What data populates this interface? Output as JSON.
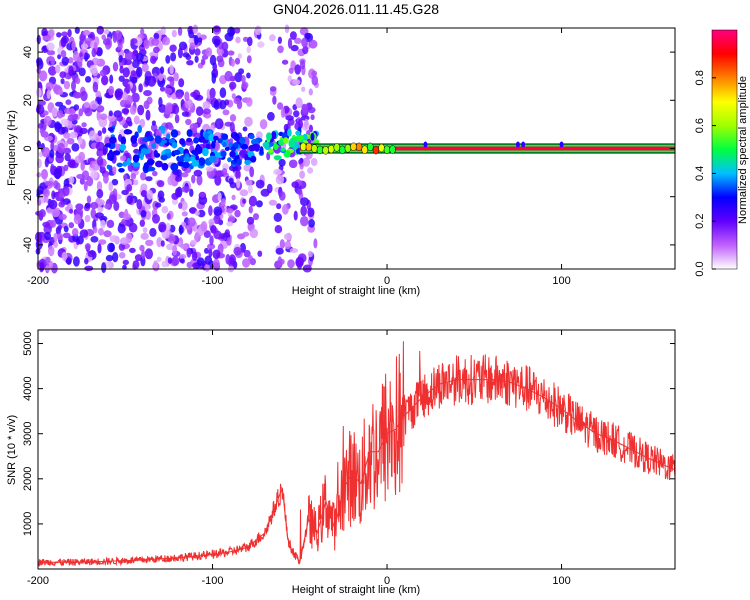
{
  "title": "GN04.2026.011.11.45.G28",
  "chart_data": [
    {
      "type": "heatmap",
      "name": "spectrogram",
      "title": "GN04.2026.011.11.45.G28",
      "xlabel": "Height of straight line (km)",
      "ylabel": "Frequency (Hz)",
      "xlim": [
        -200,
        165
      ],
      "ylim": [
        -50,
        50
      ],
      "xticks": [
        -200,
        -100,
        0,
        100
      ],
      "xtick_labels": [
        "-200",
        "-100",
        "0",
        "100"
      ],
      "yticks": [
        -40,
        -20,
        0,
        20,
        40
      ],
      "ytick_labels": [
        "-40",
        "-20",
        "0",
        "20",
        "40"
      ],
      "colorbar": {
        "label": "Normalized spectral amplitude",
        "range": [
          0,
          1
        ],
        "ticks": [
          0.0,
          0.2,
          0.4,
          0.6,
          0.8
        ],
        "tick_labels": [
          "0.0",
          "0.2",
          "0.4",
          "0.6",
          "0.8"
        ],
        "colors": [
          "#ffffff",
          "#c060ff",
          "#6000ff",
          "#0000ff",
          "#00c0ff",
          "#00ff40",
          "#a0ff00",
          "#ffff00",
          "#ff8000",
          "#ff0000",
          "#ff0080"
        ]
      },
      "features": {
        "carrier_frequency_hz": 0,
        "carrier_start_km": -50,
        "carrier_end_km": 165,
        "carrier_amplitude": 0.95,
        "noise_region_km": [
          -200,
          -45
        ],
        "noise_amplitude": 0.2
      }
    },
    {
      "type": "line",
      "name": "snr",
      "xlabel": "Height of straight line (km)",
      "ylabel": "SNR (10 * v/v)",
      "xlim": [
        -200,
        165
      ],
      "ylim": [
        0,
        5300
      ],
      "xticks": [
        -200,
        -100,
        0,
        100
      ],
      "xtick_labels": [
        "-200",
        "-100",
        "0",
        "100"
      ],
      "yticks": [
        1000,
        2000,
        3000,
        4000,
        5000
      ],
      "ytick_labels": [
        "1000",
        "2000",
        "3000",
        "4000",
        "5000"
      ],
      "series": [
        {
          "name": "SNR",
          "color": "#f03030",
          "x": [
            -200,
            -180,
            -160,
            -140,
            -120,
            -100,
            -90,
            -80,
            -70,
            -65,
            -60,
            -57,
            -55,
            -50,
            -45,
            -40,
            -35,
            -30,
            -25,
            -20,
            -15,
            -10,
            -5,
            0,
            5,
            10,
            20,
            30,
            40,
            50,
            60,
            70,
            80,
            90,
            100,
            110,
            120,
            130,
            140,
            150,
            165
          ],
          "values": [
            150,
            150,
            170,
            200,
            250,
            320,
            380,
            480,
            800,
            1300,
            1800,
            700,
            450,
            150,
            1100,
            800,
            1500,
            900,
            1800,
            2100,
            1900,
            2600,
            2600,
            3000,
            3100,
            3400,
            3800,
            4100,
            4200,
            4200,
            4200,
            4150,
            4000,
            3800,
            3550,
            3250,
            3000,
            2850,
            2650,
            2450,
            2200
          ]
        }
      ]
    }
  ]
}
